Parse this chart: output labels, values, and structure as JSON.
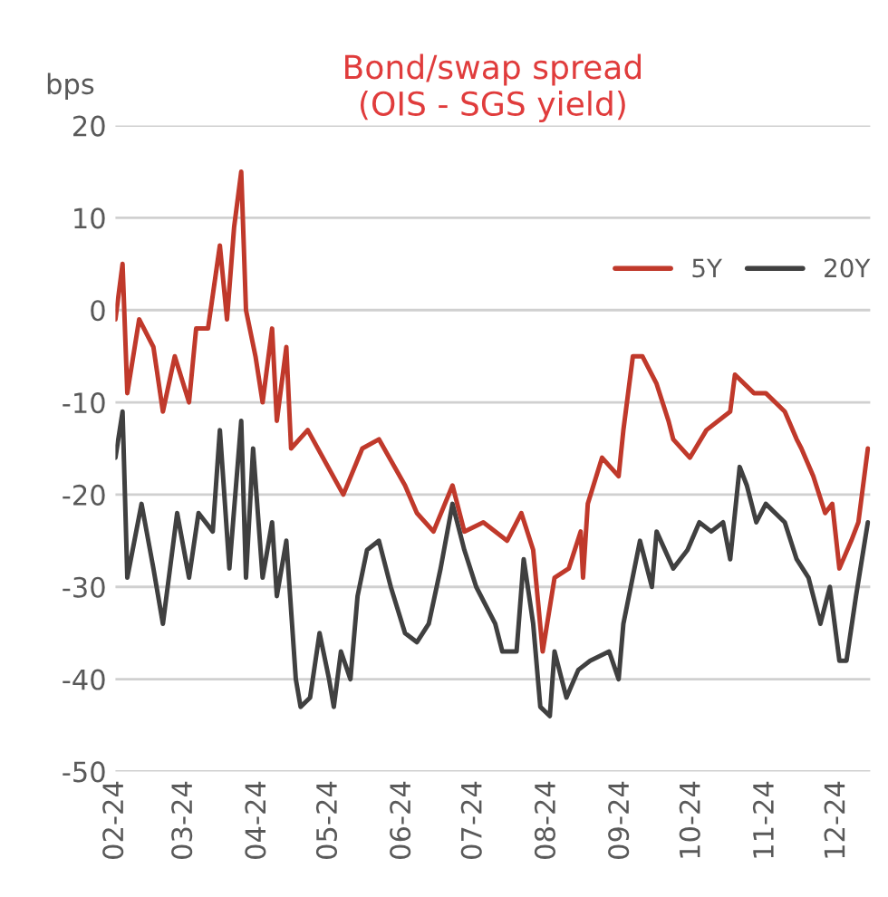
{
  "chart_data": {
    "type": "line",
    "title": "Bond/swap spread\n(OIS - SGS yield)",
    "ylabel": "bps",
    "ylim": [
      -50,
      20
    ],
    "yticks": [
      -50,
      -40,
      -30,
      -20,
      -10,
      0,
      10,
      20
    ],
    "xlim": [
      "2024-02-01",
      "2024-12-15"
    ],
    "xticks": [
      {
        "value": "2024-02-01",
        "label": "02-24"
      },
      {
        "value": "2024-03-01",
        "label": "03-24"
      },
      {
        "value": "2024-04-01",
        "label": "04-24"
      },
      {
        "value": "2024-05-01",
        "label": "05-24"
      },
      {
        "value": "2024-06-01",
        "label": "06-24"
      },
      {
        "value": "2024-07-01",
        "label": "07-24"
      },
      {
        "value": "2024-08-01",
        "label": "08-24"
      },
      {
        "value": "2024-09-01",
        "label": "09-24"
      },
      {
        "value": "2024-10-01",
        "label": "10-24"
      },
      {
        "value": "2024-11-01",
        "label": "11-24"
      },
      {
        "value": "2024-12-01",
        "label": "12-24"
      }
    ],
    "grid": "y",
    "legend": "top right",
    "marker": "none",
    "line_style": "solid",
    "series": [
      {
        "name": "5Y",
        "color": "#c0392b",
        "x": [
          "2024-02-01",
          "2024-02-04",
          "2024-02-06",
          "2024-02-11",
          "2024-02-17",
          "2024-02-21",
          "2024-02-26",
          "2024-03-03",
          "2024-03-06",
          "2024-03-11",
          "2024-03-16",
          "2024-03-19",
          "2024-03-22",
          "2024-03-25",
          "2024-03-27",
          "2024-03-31",
          "2024-04-03",
          "2024-04-07",
          "2024-04-09",
          "2024-04-13",
          "2024-04-15",
          "2024-04-22",
          "2024-05-07",
          "2024-05-15",
          "2024-05-22",
          "2024-06-02",
          "2024-06-07",
          "2024-06-14",
          "2024-06-22",
          "2024-06-27",
          "2024-07-05",
          "2024-07-15",
          "2024-07-21",
          "2024-07-26",
          "2024-07-30",
          "2024-08-04",
          "2024-08-10",
          "2024-08-15",
          "2024-08-16",
          "2024-08-18",
          "2024-08-24",
          "2024-08-31",
          "2024-09-02",
          "2024-09-06",
          "2024-09-10",
          "2024-09-16",
          "2024-09-21",
          "2024-09-23",
          "2024-09-30",
          "2024-10-07",
          "2024-10-17",
          "2024-10-19",
          "2024-10-27",
          "2024-11-01",
          "2024-11-09",
          "2024-11-14",
          "2024-11-16",
          "2024-11-21",
          "2024-11-26",
          "2024-11-29",
          "2024-12-02",
          "2024-12-07",
          "2024-12-10",
          "2024-12-14"
        ],
        "values": [
          -1,
          5,
          -9,
          -1,
          -4,
          -11,
          -5,
          -10,
          -2,
          -2,
          7,
          -1,
          9,
          15,
          0,
          -5,
          -10,
          -2,
          -12,
          -4,
          -15,
          -13,
          -20,
          -15,
          -14,
          -19,
          -22,
          -24,
          -19,
          -24,
          -23,
          -25,
          -22,
          -26,
          -37,
          -29,
          -28,
          -24,
          -29,
          -21,
          -16,
          -18,
          -13,
          -5,
          -5,
          -8,
          -12,
          -14,
          -16,
          -13,
          -11,
          -7,
          -9,
          -9,
          -11,
          -14,
          -15,
          -18,
          -22,
          -21,
          -28,
          -25,
          -23,
          -15
        ]
      },
      {
        "name": "20Y",
        "color": "#404040",
        "x": [
          "2024-02-01",
          "2024-02-04",
          "2024-02-06",
          "2024-02-12",
          "2024-02-17",
          "2024-02-21",
          "2024-02-27",
          "2024-03-03",
          "2024-03-07",
          "2024-03-13",
          "2024-03-16",
          "2024-03-20",
          "2024-03-25",
          "2024-03-27",
          "2024-03-30",
          "2024-04-03",
          "2024-04-07",
          "2024-04-09",
          "2024-04-13",
          "2024-04-17",
          "2024-04-19",
          "2024-04-23",
          "2024-04-27",
          "2024-05-01",
          "2024-05-03",
          "2024-05-06",
          "2024-05-10",
          "2024-05-13",
          "2024-05-17",
          "2024-05-22",
          "2024-05-27",
          "2024-06-02",
          "2024-06-07",
          "2024-06-12",
          "2024-06-17",
          "2024-06-22",
          "2024-06-27",
          "2024-07-02",
          "2024-07-10",
          "2024-07-13",
          "2024-07-19",
          "2024-07-22",
          "2024-07-26",
          "2024-07-29",
          "2024-08-02",
          "2024-08-04",
          "2024-08-09",
          "2024-08-14",
          "2024-08-19",
          "2024-08-27",
          "2024-08-31",
          "2024-09-02",
          "2024-09-09",
          "2024-09-14",
          "2024-09-16",
          "2024-09-23",
          "2024-09-29",
          "2024-10-04",
          "2024-10-09",
          "2024-10-14",
          "2024-10-17",
          "2024-10-21",
          "2024-10-24",
          "2024-10-28",
          "2024-11-01",
          "2024-11-09",
          "2024-11-14",
          "2024-11-19",
          "2024-11-24",
          "2024-11-28",
          "2024-12-02",
          "2024-12-05",
          "2024-12-09",
          "2024-12-14"
        ],
        "values": [
          -16,
          -11,
          -29,
          -21,
          -28,
          -34,
          -22,
          -29,
          -22,
          -24,
          -13,
          -28,
          -12,
          -29,
          -15,
          -29,
          -23,
          -31,
          -25,
          -40,
          -43,
          -42,
          -35,
          -40,
          -43,
          -37,
          -40,
          -31,
          -26,
          -25,
          -30,
          -35,
          -36,
          -34,
          -28,
          -21,
          -26,
          -30,
          -34,
          -37,
          -37,
          -27,
          -34,
          -43,
          -44,
          -37,
          -42,
          -39,
          -38,
          -37,
          -40,
          -34,
          -25,
          -30,
          -24,
          -28,
          -26,
          -23,
          -24,
          -23,
          -27,
          -17,
          -19,
          -23,
          -21,
          -23,
          -27,
          -29,
          -34,
          -30,
          -38,
          -38,
          -31,
          -23
        ]
      }
    ]
  }
}
